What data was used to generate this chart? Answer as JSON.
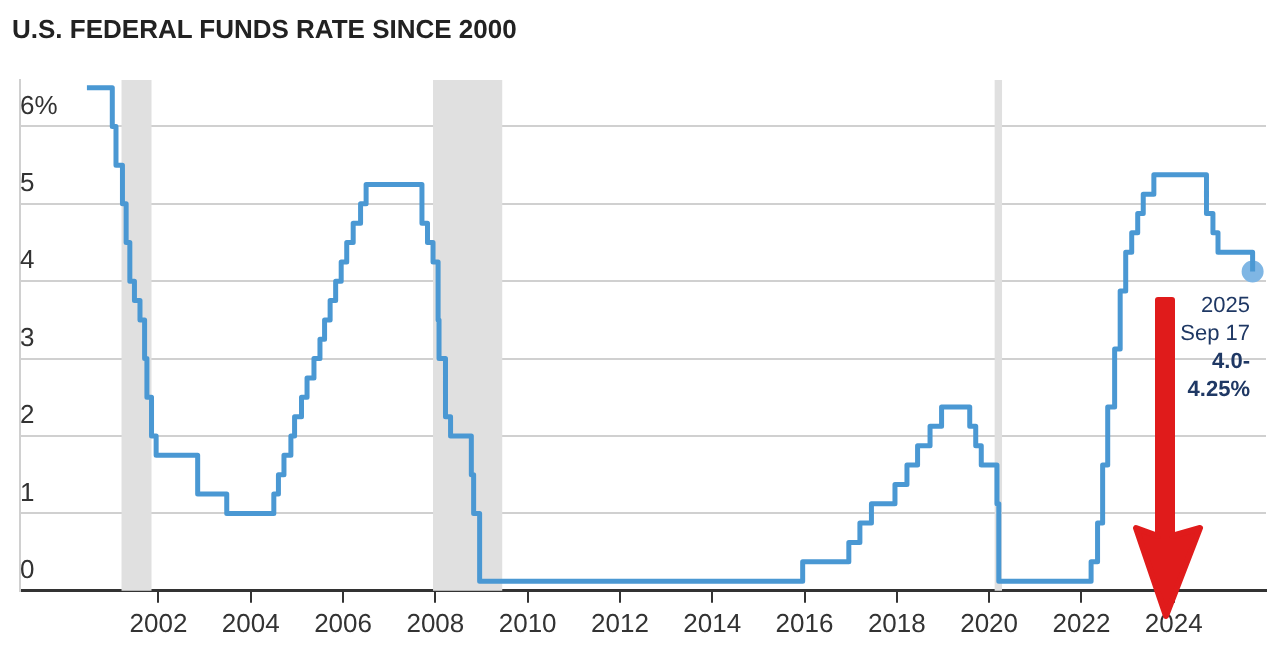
{
  "chart_data": {
    "type": "step",
    "title": "U.S. FEDERAL FUNDS RATE SINCE 2000",
    "series": [
      {
        "color": "#4a98d3",
        "x": [
          2000.45,
          2001.0,
          2001.08,
          2001.22,
          2001.3,
          2001.38,
          2001.48,
          2001.6,
          2001.7,
          2001.75,
          2001.85,
          2001.95,
          2002.85,
          2003.48,
          2004.5,
          2004.6,
          2004.72,
          2004.87,
          2004.95,
          2005.1,
          2005.22,
          2005.37,
          2005.5,
          2005.6,
          2005.72,
          2005.84,
          2005.96,
          2006.08,
          2006.22,
          2006.38,
          2006.5,
          2007.71,
          2007.83,
          2007.95,
          2008.06,
          2008.08,
          2008.22,
          2008.33,
          2008.78,
          2008.83,
          2008.96,
          2015.96,
          2016.96,
          2017.2,
          2017.45,
          2017.96,
          2018.22,
          2018.45,
          2018.72,
          2018.97,
          2019.58,
          2019.71,
          2019.83,
          2020.17,
          2020.21,
          2022.21,
          2022.35,
          2022.46,
          2022.57,
          2022.72,
          2022.84,
          2022.96,
          2023.09,
          2023.22,
          2023.34,
          2023.57,
          2024.71,
          2024.85,
          2024.96,
          2025.71
        ],
        "values": [
          6.5,
          6.0,
          5.5,
          5.0,
          4.5,
          4.0,
          3.75,
          3.5,
          3.0,
          2.5,
          2.0,
          1.75,
          1.25,
          1.0,
          1.25,
          1.5,
          1.75,
          2.0,
          2.25,
          2.5,
          2.75,
          3.0,
          3.25,
          3.5,
          3.75,
          4.0,
          4.25,
          4.5,
          4.75,
          5.0,
          5.25,
          4.75,
          4.5,
          4.25,
          3.5,
          3.0,
          2.25,
          2.0,
          1.5,
          1.0,
          0.125,
          0.375,
          0.625,
          0.875,
          1.125,
          1.375,
          1.625,
          1.875,
          2.125,
          2.375,
          2.125,
          1.875,
          1.625,
          1.125,
          0.125,
          0.375,
          0.875,
          1.625,
          2.375,
          3.125,
          3.875,
          4.375,
          4.625,
          4.875,
          5.125,
          5.375,
          4.875,
          4.625,
          4.375,
          4.125
        ]
      },
      {
        "type": "scatter",
        "color": "#7fb6e4",
        "x": [
          2025.71
        ],
        "values": [
          4.125
        ]
      }
    ],
    "xlim": [
      1999,
      2026
    ],
    "xticks": [
      2002,
      2004,
      2006,
      2008,
      2010,
      2012,
      2014,
      2016,
      2018,
      2020,
      2022,
      2024
    ],
    "ylim": [
      0,
      6.6
    ],
    "yticks": [
      0,
      1,
      2,
      3,
      4,
      5,
      {
        "value": 6,
        "label": "6%"
      }
    ],
    "grid": "y",
    "legend": false,
    "line_style": "solid",
    "bands": [
      {
        "axis": "x",
        "from": 2001.2,
        "to": 2001.85,
        "color": "#e0e0e0"
      },
      {
        "axis": "x",
        "from": 2007.95,
        "to": 2009.45,
        "color": "#e0e0e0"
      },
      {
        "axis": "x",
        "from": 2020.12,
        "to": 2020.28,
        "color": "#e0e0e0"
      }
    ],
    "annotations": [
      "2025\nSep 17",
      "4.0-\n4.25%"
    ]
  }
}
